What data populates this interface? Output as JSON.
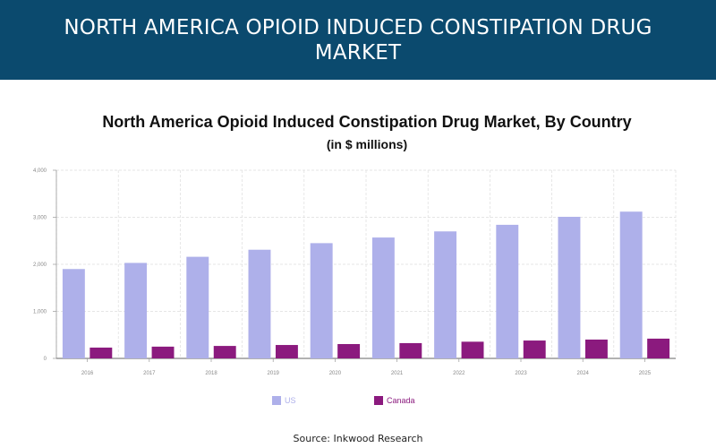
{
  "header": {
    "title": "NORTH AMERICA OPIOID INDUCED CONSTIPATION DRUG MARKET"
  },
  "source": "Source: Inkwood Research",
  "colors": {
    "banner": "#0b4a6e",
    "us": "#aeb0ea",
    "canada": "#8b1a7e",
    "legend_us_text": "#aeb0ea",
    "legend_canada_text": "#8b1a7e"
  },
  "chart_data": {
    "type": "bar",
    "title": "North America Opioid Induced Constipation Drug Market, By Country",
    "subtitle": "(in $ millions)",
    "xlabel": "",
    "ylabel": "",
    "categories": [
      "2016",
      "2017",
      "2018",
      "2019",
      "2020",
      "2021",
      "2022",
      "2023",
      "2024",
      "2025"
    ],
    "series": [
      {
        "name": "US",
        "values": [
          1900,
          2030,
          2160,
          2310,
          2450,
          2570,
          2700,
          2840,
          3010,
          3120
        ]
      },
      {
        "name": "Canada",
        "values": [
          230,
          250,
          265,
          285,
          305,
          325,
          355,
          380,
          400,
          420
        ]
      }
    ],
    "ylim": [
      0,
      4000
    ],
    "yticks": [
      0,
      1000,
      2000,
      3000,
      4000
    ],
    "ytick_labels": [
      "0",
      "1,000",
      "2,000",
      "3,000",
      "4,000"
    ],
    "grid": true,
    "legend_position": "bottom"
  }
}
